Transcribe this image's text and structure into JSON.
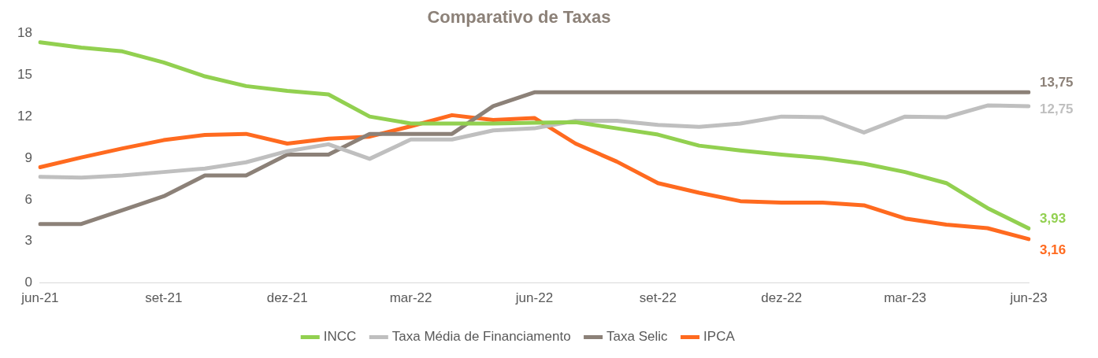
{
  "chart_data": {
    "type": "line",
    "title": "Comparativo de Taxas",
    "categories": [
      "jun-21",
      null,
      null,
      "set-21",
      null,
      null,
      "dez-21",
      null,
      null,
      "mar-22",
      null,
      null,
      "jun-22",
      null,
      null,
      "set-22",
      null,
      null,
      "dez-22",
      null,
      null,
      "mar-23",
      null,
      null,
      "jun-23"
    ],
    "series": [
      {
        "name": "INCC",
        "color": "#92d050",
        "values": [
          17.35,
          16.97,
          16.7,
          15.9,
          14.9,
          14.2,
          13.85,
          13.6,
          12.0,
          11.5,
          11.5,
          11.5,
          11.55,
          11.6,
          11.15,
          10.7,
          9.9,
          9.55,
          9.25,
          9.0,
          8.6,
          8.0,
          7.2,
          5.4,
          3.93
        ],
        "value_labels": [
          null,
          null,
          null,
          null,
          null,
          null,
          null,
          null,
          null,
          null,
          null,
          null,
          null,
          null,
          null,
          null,
          null,
          null,
          null,
          null,
          null,
          null,
          null,
          null,
          "3,93"
        ]
      },
      {
        "name": "Taxa Média de Financiamento",
        "color": "#bfbfbf",
        "values": [
          7.65,
          7.6,
          7.75,
          8.0,
          8.25,
          8.7,
          9.5,
          10.0,
          8.95,
          10.35,
          10.35,
          11.0,
          11.15,
          11.7,
          11.7,
          11.4,
          11.25,
          11.5,
          12.0,
          11.95,
          10.85,
          12.0,
          11.95,
          12.8,
          12.75
        ],
        "value_labels": [
          null,
          null,
          null,
          null,
          null,
          null,
          null,
          null,
          null,
          null,
          null,
          null,
          null,
          null,
          null,
          null,
          null,
          null,
          null,
          null,
          null,
          null,
          null,
          null,
          "12,75"
        ]
      },
      {
        "name": "Taxa Selic",
        "color": "#8c8178",
        "values": [
          4.25,
          4.25,
          5.25,
          6.25,
          7.75,
          7.75,
          9.25,
          9.25,
          10.75,
          10.75,
          10.75,
          12.75,
          13.75,
          13.75,
          13.75,
          13.75,
          13.75,
          13.75,
          13.75,
          13.75,
          13.75,
          13.75,
          13.75,
          13.75,
          13.75
        ],
        "value_labels": [
          null,
          null,
          null,
          null,
          null,
          null,
          null,
          null,
          null,
          null,
          null,
          null,
          null,
          null,
          null,
          null,
          null,
          null,
          null,
          null,
          null,
          null,
          null,
          null,
          "13,75"
        ]
      },
      {
        "name": "IPCA",
        "color": "#ff6a1f",
        "values": [
          8.35,
          9.05,
          9.7,
          10.3,
          10.67,
          10.75,
          10.05,
          10.4,
          10.55,
          11.3,
          12.1,
          11.75,
          11.9,
          10.05,
          8.75,
          7.2,
          6.5,
          5.9,
          5.8,
          5.8,
          5.6,
          4.65,
          4.2,
          3.95,
          3.16
        ],
        "value_labels": [
          null,
          null,
          null,
          null,
          null,
          null,
          null,
          null,
          null,
          null,
          null,
          null,
          null,
          null,
          null,
          null,
          null,
          null,
          null,
          null,
          null,
          null,
          null,
          null,
          "3,16"
        ]
      }
    ],
    "ylim": [
      0,
      18
    ],
    "yticks": [
      0,
      3,
      6,
      9,
      12,
      15,
      18
    ],
    "grid": false,
    "legend": "bottom",
    "marker": "none",
    "line_style": "solid"
  }
}
